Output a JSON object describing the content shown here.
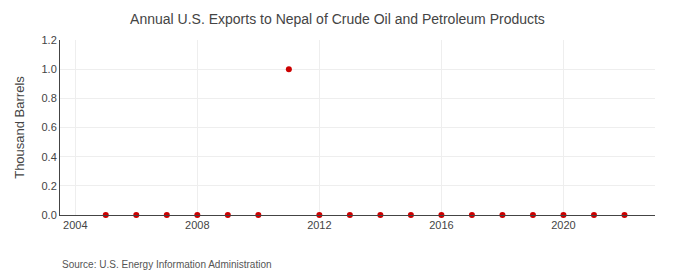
{
  "chart_data": {
    "type": "scatter",
    "title": "Annual U.S. Exports to Nepal of Crude Oil and Petroleum Products",
    "ylabel": "Thousand Barrels",
    "annotations": [
      "Source: U.S. Energy Information Administration"
    ],
    "x": [
      2005,
      2006,
      2007,
      2008,
      2009,
      2010,
      2011,
      2012,
      2013,
      2014,
      2015,
      2016,
      2017,
      2018,
      2019,
      2020,
      2021,
      2022
    ],
    "values": [
      0,
      0,
      0,
      0,
      0,
      0,
      1.0,
      0,
      0,
      0,
      0,
      0,
      0,
      0,
      0,
      0,
      0,
      0
    ],
    "color": "#cc0000",
    "marker": "circle",
    "xlim": [
      2003.5,
      2023.0
    ],
    "xticks": [
      2004,
      2008,
      2012,
      2016,
      2020
    ],
    "ylim": [
      0.0,
      1.2
    ],
    "yticks": [
      {
        "value": 0.0,
        "label": "0.0"
      },
      0.2,
      0.4,
      0.6,
      0.8,
      {
        "value": 1.0,
        "label": "1.0"
      },
      1.2
    ],
    "grid": true
  }
}
